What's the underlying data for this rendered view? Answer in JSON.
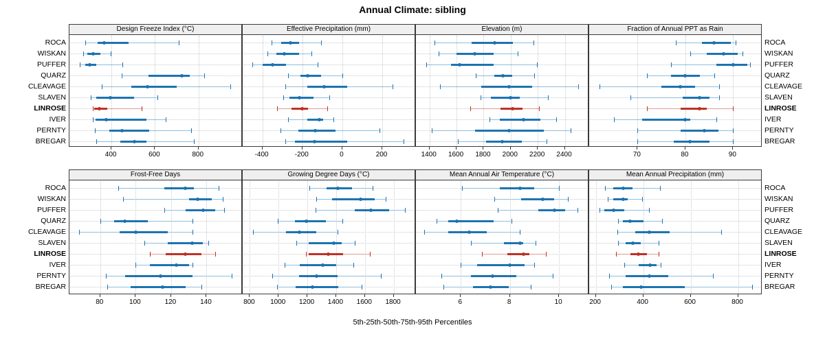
{
  "chart_data": {
    "type": "dotplot",
    "layout": {
      "rows": 2,
      "cols": 4,
      "grid": "dotted",
      "legend_position": "none"
    },
    "title": "Annual Climate: sibling",
    "footer": "5th-25th-50th-75th-95th Percentiles",
    "percentiles": [
      "5th",
      "25th",
      "50th",
      "75th",
      "95th"
    ],
    "sites": [
      "ROCA",
      "WISKAN",
      "PUFFER",
      "QUARZ",
      "CLEAVAGE",
      "SLAVEN",
      "LINROSE",
      "IVER",
      "PERNTY",
      "BREGAR"
    ],
    "highlight_site": "LINROSE",
    "highlight_index": 6,
    "colors": {
      "normal": "#1c73b1",
      "normal_light": "#90bedc",
      "highlight": "#bd3126",
      "highlight_light": "#dd9b94",
      "strip_bg": "#efefef",
      "panel_border": "#3a3a3a",
      "gridline": "#c9c9c9"
    },
    "panels": [
      {
        "title": "Design Freeze Index (°C)",
        "xlim": [
          210,
          1000
        ],
        "ticks": [
          400,
          600,
          800
        ],
        "values": [
          [
            280,
            335,
            367,
            480,
            710
          ],
          [
            270,
            290,
            315,
            350,
            395
          ],
          [
            255,
            280,
            300,
            330,
            450
          ],
          [
            448,
            570,
            725,
            760,
            825
          ],
          [
            355,
            490,
            565,
            700,
            945
          ],
          [
            305,
            330,
            395,
            505,
            610
          ],
          [
            313,
            322,
            343,
            380,
            540
          ],
          [
            315,
            327,
            375,
            560,
            650
          ],
          [
            325,
            390,
            450,
            575,
            765
          ],
          [
            330,
            440,
            505,
            560,
            780
          ]
        ]
      },
      {
        "title": "Effective Precipitation (mm)",
        "xlim": [
          -495,
          365
        ],
        "ticks": [
          -400,
          -200,
          0,
          200
        ],
        "values": [
          [
            -355,
            -305,
            -260,
            -215,
            -105
          ],
          [
            -375,
            -330,
            -290,
            -215,
            -155
          ],
          [
            -450,
            -400,
            -350,
            -280,
            -125
          ],
          [
            -270,
            -210,
            -175,
            -105,
            0
          ],
          [
            -285,
            -175,
            -90,
            25,
            250
          ],
          [
            -295,
            -265,
            -215,
            -145,
            -65
          ],
          [
            -325,
            -255,
            -200,
            -170,
            -75
          ],
          [
            -270,
            -175,
            -115,
            -95,
            -45
          ],
          [
            -310,
            -220,
            -135,
            -35,
            185
          ],
          [
            -285,
            -238,
            -140,
            25,
            305
          ]
        ]
      },
      {
        "title": "Elevation (m)",
        "xlim": [
          1305,
          2575
        ],
        "ticks": [
          1400,
          1600,
          1800,
          2000,
          2200,
          2400
        ],
        "values": [
          [
            1435,
            1710,
            1880,
            2015,
            2170
          ],
          [
            1470,
            1600,
            1735,
            1875,
            2050
          ],
          [
            1375,
            1560,
            1625,
            1875,
            2195
          ],
          [
            1740,
            1880,
            1945,
            2010,
            2175
          ],
          [
            1480,
            1780,
            1990,
            2160,
            2500
          ],
          [
            1775,
            1855,
            2000,
            2065,
            2275
          ],
          [
            1700,
            1925,
            2015,
            2085,
            2210
          ],
          [
            1845,
            1920,
            2095,
            2220,
            2335
          ],
          [
            1415,
            1735,
            1990,
            2245,
            2445
          ],
          [
            1610,
            1820,
            1935,
            2080,
            2265
          ]
        ]
      },
      {
        "title": "Fraction of Annual PPT as Rain",
        "xlim": [
          60,
          96
        ],
        "ticks": [
          70,
          80,
          90
        ],
        "values": [
          [
            78,
            83.5,
            86,
            89.5,
            90.5
          ],
          [
            81,
            84.5,
            88,
            91,
            92
          ],
          [
            77,
            86.5,
            90,
            93,
            93.5
          ],
          [
            72,
            77,
            80,
            83,
            86
          ],
          [
            62,
            75,
            79,
            82,
            87
          ],
          [
            68.5,
            79.5,
            83,
            85,
            87
          ],
          [
            72,
            79,
            83,
            84.5,
            90
          ],
          [
            65,
            71,
            80,
            81,
            86.5
          ],
          [
            70,
            79,
            84,
            87,
            90
          ],
          [
            70,
            77.5,
            81,
            85,
            90
          ]
        ]
      },
      {
        "title": "Frost-Free Days",
        "xlim": [
          63,
          160
        ],
        "ticks": [
          80,
          100,
          120,
          140
        ],
        "values": [
          [
            90,
            116,
            128,
            133,
            147
          ],
          [
            93,
            130,
            135,
            143,
            149
          ],
          [
            116,
            128,
            138,
            145,
            150
          ],
          [
            80,
            88,
            94,
            107,
            132
          ],
          [
            68,
            91,
            100,
            118,
            132
          ],
          [
            105,
            118,
            132,
            138,
            141
          ],
          [
            108,
            117,
            128,
            137,
            145
          ],
          [
            100,
            108,
            123,
            130,
            132
          ],
          [
            83,
            94,
            114,
            132,
            154
          ],
          [
            84,
            97,
            115,
            128,
            137
          ]
        ]
      },
      {
        "title": "Growing Degree Days (°C)",
        "xlim": [
          755,
          1950
        ],
        "ticks": [
          800,
          1000,
          1200,
          1400,
          1600,
          1800
        ],
        "values": [
          [
            1215,
            1335,
            1410,
            1510,
            1655
          ],
          [
            1260,
            1370,
            1570,
            1670,
            1745
          ],
          [
            1255,
            1530,
            1640,
            1770,
            1880
          ],
          [
            995,
            1115,
            1190,
            1330,
            1445
          ],
          [
            820,
            1050,
            1145,
            1260,
            1410
          ],
          [
            1125,
            1210,
            1385,
            1440,
            1530
          ],
          [
            1190,
            1210,
            1345,
            1450,
            1635
          ],
          [
            1040,
            1145,
            1305,
            1400,
            1520
          ],
          [
            955,
            1140,
            1265,
            1410,
            1710
          ],
          [
            990,
            1120,
            1235,
            1415,
            1575
          ]
        ]
      },
      {
        "title": "Mean Annual Air Temperature (°C)",
        "xlim": [
          4.2,
          11.2
        ],
        "ticks": [
          6,
          8,
          10
        ],
        "values": [
          [
            6.05,
            7.6,
            8.4,
            9.0,
            10.0
          ],
          [
            7.35,
            8.45,
            9.35,
            9.8,
            10.35
          ],
          [
            7.5,
            9.15,
            9.8,
            10.25,
            10.75
          ],
          [
            5.0,
            5.5,
            5.85,
            7.35,
            8.05
          ],
          [
            4.5,
            5.5,
            6.35,
            7.05,
            8.4
          ],
          [
            6.4,
            7.75,
            8.4,
            8.55,
            9.05
          ],
          [
            6.85,
            7.9,
            8.55,
            8.8,
            9.45
          ],
          [
            6.0,
            6.65,
            8.0,
            8.6,
            9.0
          ],
          [
            5.2,
            6.4,
            7.3,
            8.25,
            9.75
          ],
          [
            5.3,
            6.5,
            7.2,
            7.95,
            8.85
          ]
        ]
      },
      {
        "title": "Mean Annual Precipitation (mm)",
        "xlim": [
          175,
          900
        ],
        "ticks": [
          200,
          400,
          600,
          800
        ],
        "values": [
          [
            240,
            275,
            315,
            355,
            470
          ],
          [
            250,
            275,
            315,
            335,
            395
          ],
          [
            215,
            235,
            275,
            320,
            425
          ],
          [
            295,
            315,
            345,
            400,
            480
          ],
          [
            290,
            365,
            425,
            510,
            730
          ],
          [
            295,
            325,
            355,
            390,
            465
          ],
          [
            285,
            345,
            380,
            415,
            465
          ],
          [
            320,
            380,
            430,
            455,
            475
          ],
          [
            255,
            325,
            425,
            505,
            695
          ],
          [
            265,
            315,
            390,
            575,
            860
          ]
        ]
      }
    ]
  }
}
